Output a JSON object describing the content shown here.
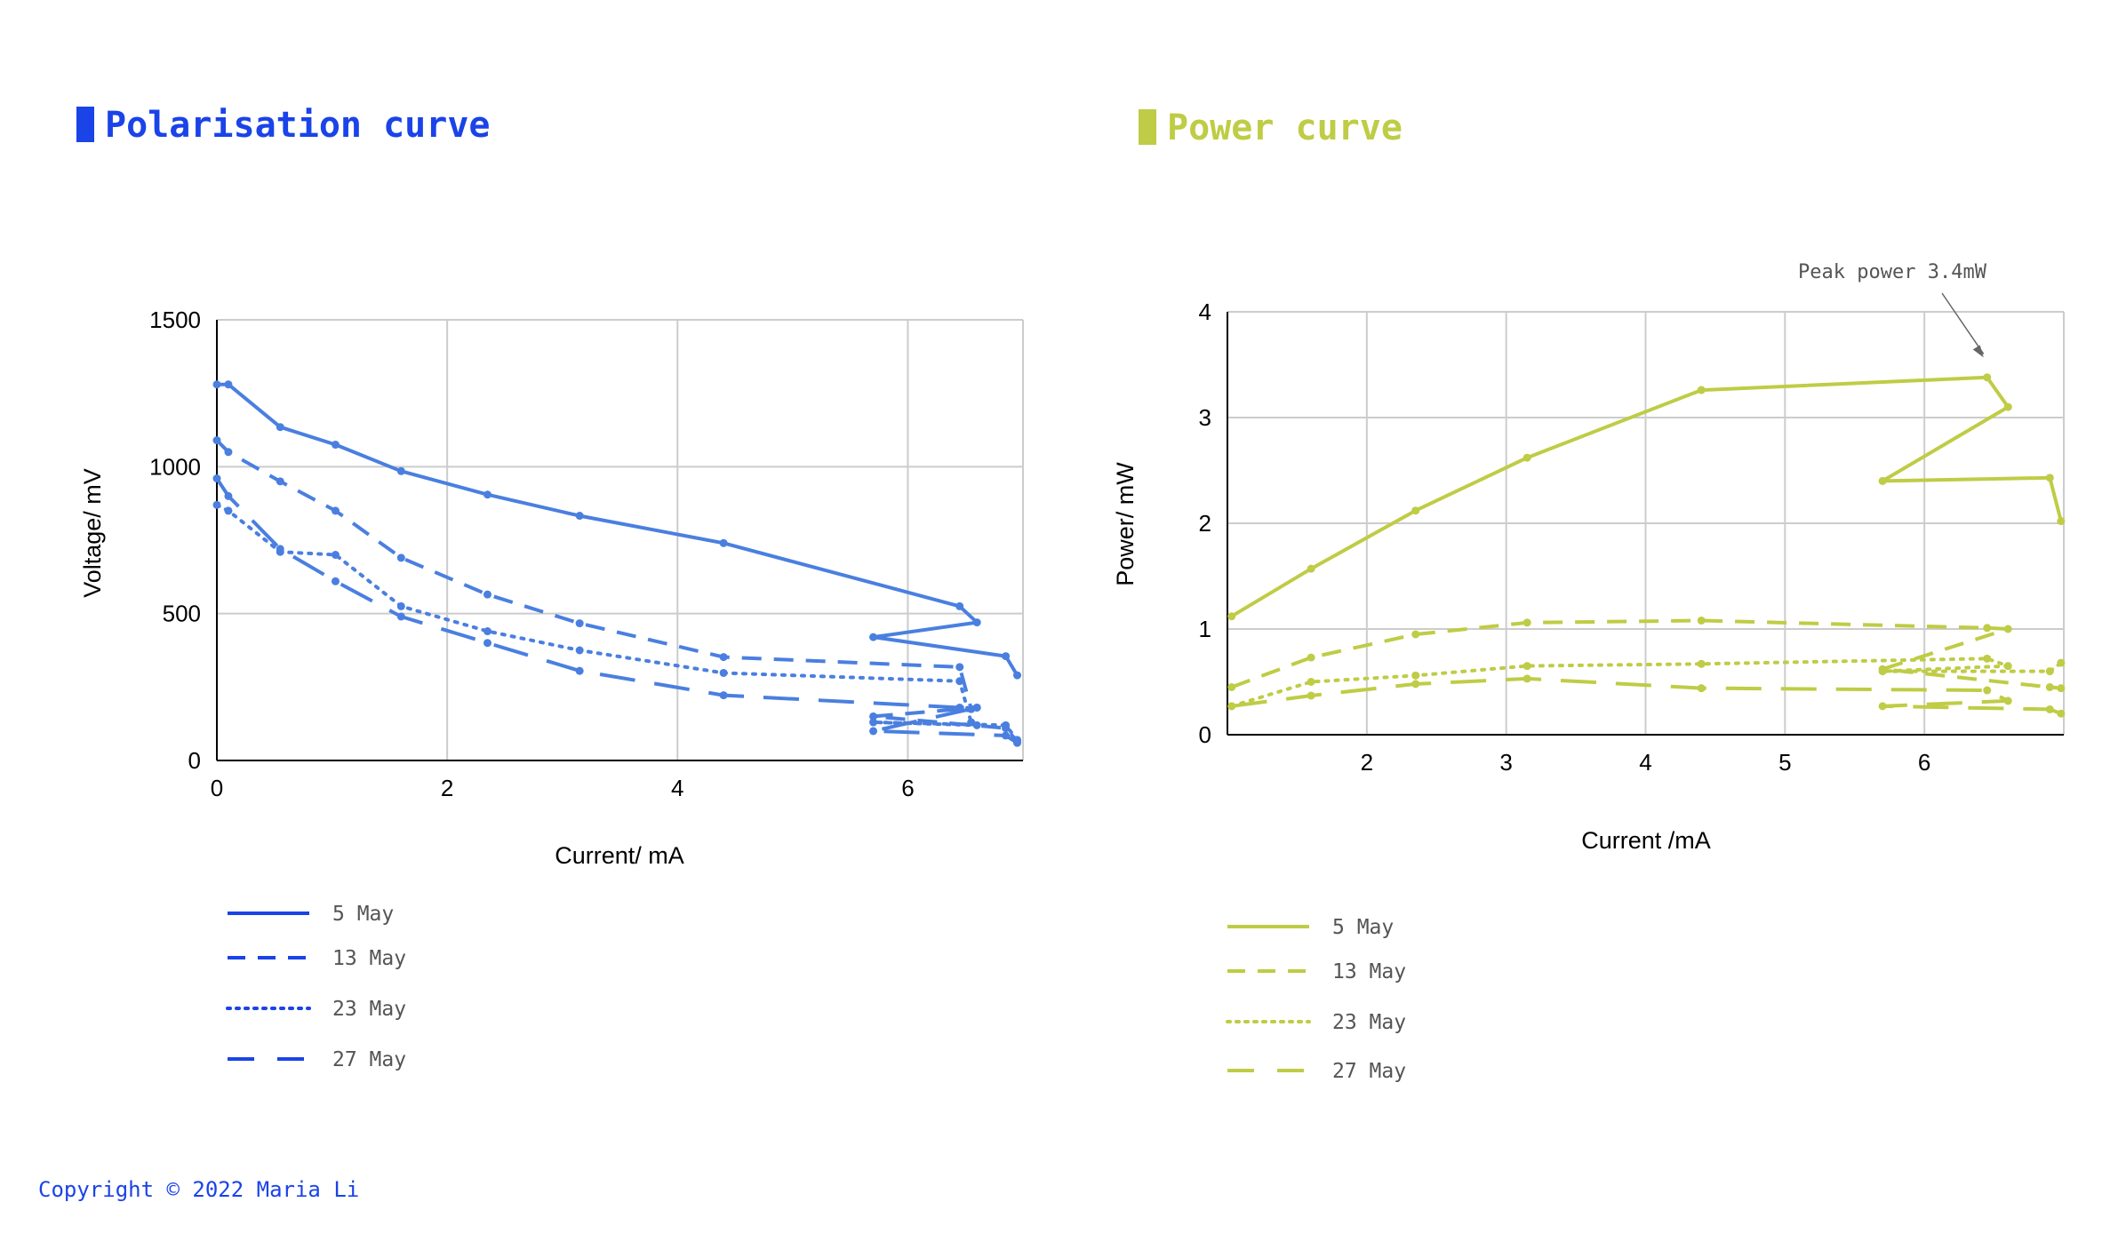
{
  "left_title": "Polarisation curve",
  "right_title": "Power curve",
  "copyright": "Copyright © 2022 Maria Li",
  "colors": {
    "blue": "#1a43e8",
    "blue_series": "#4a7fe0",
    "green": "#bfcc45"
  },
  "chart_data": [
    {
      "type": "line",
      "title": "Polarisation curve",
      "xlabel": "Current/ mA",
      "ylabel": "Voltage/ mV",
      "xlim": [
        0,
        7
      ],
      "ylim": [
        0,
        1500
      ],
      "xticks": [
        0,
        2,
        4,
        6
      ],
      "yticks": [
        0,
        500,
        1000,
        1500
      ],
      "grid": true,
      "legend_position": "bottom-left",
      "series": [
        {
          "name": "5 May",
          "dash": "solid",
          "points": [
            [
              0,
              1280
            ],
            [
              0.1,
              1280
            ],
            [
              0.55,
              1135
            ],
            [
              1.03,
              1075
            ],
            [
              1.6,
              985
            ],
            [
              2.35,
              905
            ],
            [
              3.15,
              833
            ],
            [
              4.4,
              740
            ],
            [
              6.45,
              525
            ],
            [
              6.6,
              470
            ],
            [
              5.7,
              420
            ],
            [
              6.85,
              355
            ],
            [
              6.95,
              290
            ]
          ]
        },
        {
          "name": "13 May",
          "dash": "dash",
          "points": [
            [
              0,
              1090
            ],
            [
              0.1,
              1050
            ],
            [
              0.55,
              950
            ],
            [
              1.03,
              850
            ],
            [
              1.6,
              690
            ],
            [
              2.35,
              565
            ],
            [
              3.15,
              467
            ],
            [
              4.4,
              352
            ],
            [
              6.45,
              318
            ],
            [
              6.55,
              175
            ],
            [
              6.6,
              180
            ],
            [
              5.7,
              150
            ],
            [
              6.85,
              110
            ],
            [
              6.95,
              65
            ]
          ]
        },
        {
          "name": "23 May",
          "dash": "dot",
          "points": [
            [
              0,
              870
            ],
            [
              0.1,
              850
            ],
            [
              0.55,
              710
            ],
            [
              1.03,
              700
            ],
            [
              1.6,
              525
            ],
            [
              2.35,
              440
            ],
            [
              3.15,
              375
            ],
            [
              4.4,
              298
            ],
            [
              6.45,
              270
            ],
            [
              6.55,
              130
            ],
            [
              6.6,
              120
            ],
            [
              5.7,
              130
            ],
            [
              6.85,
              120
            ],
            [
              6.95,
              70
            ]
          ]
        },
        {
          "name": "27 May",
          "dash": "longdash",
          "points": [
            [
              0,
              960
            ],
            [
              0.1,
              900
            ],
            [
              0.55,
              720
            ],
            [
              1.03,
              610
            ],
            [
              1.6,
              490
            ],
            [
              2.35,
              400
            ],
            [
              3.15,
              305
            ],
            [
              4.4,
              222
            ],
            [
              6.45,
              180
            ],
            [
              6.6,
              180
            ],
            [
              5.7,
              100
            ],
            [
              6.85,
              85
            ],
            [
              6.95,
              60
            ]
          ]
        }
      ]
    },
    {
      "type": "line",
      "title": "Power curve",
      "xlabel": "Current /mA",
      "ylabel": "Power/ mW",
      "xlim": [
        1,
        7
      ],
      "ylim": [
        0,
        4
      ],
      "xticks": [
        2,
        3,
        4,
        5,
        6
      ],
      "yticks": [
        0,
        1,
        2,
        3,
        4
      ],
      "grid": true,
      "legend_position": "bottom-left",
      "annotation": {
        "text": "Peak power 3.4mW",
        "x": 6.45,
        "y": 3.4
      },
      "series": [
        {
          "name": "5 May",
          "dash": "solid",
          "points": [
            [
              1.03,
              1.12
            ],
            [
              1.6,
              1.57
            ],
            [
              2.35,
              2.12
            ],
            [
              3.15,
              2.62
            ],
            [
              4.4,
              3.26
            ],
            [
              6.45,
              3.38
            ],
            [
              6.6,
              3.1
            ],
            [
              5.7,
              2.4
            ],
            [
              6.9,
              2.43
            ],
            [
              6.98,
              2.02
            ]
          ]
        },
        {
          "name": "13 May",
          "dash": "dash",
          "points": [
            [
              1.03,
              0.45
            ],
            [
              1.6,
              0.73
            ],
            [
              2.35,
              0.95
            ],
            [
              3.15,
              1.06
            ],
            [
              4.4,
              1.08
            ],
            [
              6.45,
              1.01
            ],
            [
              6.6,
              1.0
            ],
            [
              5.7,
              0.62
            ],
            [
              6.9,
              0.45
            ],
            [
              6.98,
              0.44
            ]
          ]
        },
        {
          "name": "23 May",
          "dash": "dot",
          "points": [
            [
              1.03,
              0.27
            ],
            [
              1.6,
              0.5
            ],
            [
              2.35,
              0.56
            ],
            [
              3.15,
              0.65
            ],
            [
              4.4,
              0.67
            ],
            [
              6.45,
              0.72
            ],
            [
              6.6,
              0.65
            ],
            [
              5.7,
              0.6
            ],
            [
              6.9,
              0.6
            ],
            [
              6.98,
              0.68
            ]
          ]
        },
        {
          "name": "27 May",
          "dash": "longdash",
          "points": [
            [
              1.03,
              0.27
            ],
            [
              1.6,
              0.37
            ],
            [
              2.35,
              0.48
            ],
            [
              3.15,
              0.53
            ],
            [
              4.4,
              0.44
            ],
            [
              6.45,
              0.42
            ],
            [
              6.6,
              0.32
            ],
            [
              5.7,
              0.27
            ],
            [
              6.9,
              0.24
            ],
            [
              6.98,
              0.2
            ]
          ]
        }
      ]
    }
  ]
}
